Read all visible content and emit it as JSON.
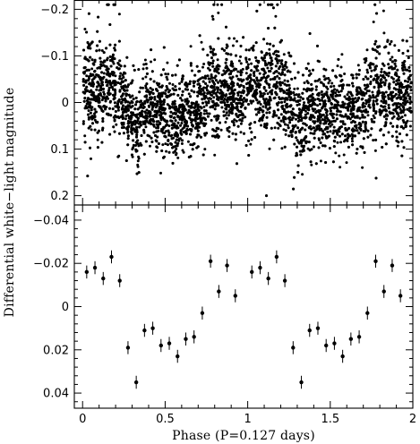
{
  "chart_data": [
    {
      "type": "scatter",
      "panel": "top",
      "title": "",
      "xlabel": "",
      "ylabel": "",
      "xlim": [
        -0.05,
        2.0
      ],
      "ylim": [
        0.22,
        -0.22
      ],
      "y_inverted": true,
      "x_ticks": [
        0,
        0.5,
        1,
        1.5,
        2
      ],
      "y_ticks": [
        -0.2,
        -0.1,
        0,
        0.1,
        0.2
      ],
      "y_tick_labels": [
        "−0.2",
        "−0.1",
        "0",
        "0.1",
        "0.2"
      ],
      "description_values": {
        "n_points_approx": 5000,
        "core_spread": 0.045,
        "envelope_peaks_phase": [
          0.05,
          0.15,
          0.8,
          1.05,
          1.15,
          1.8
        ],
        "outlier_ymin": -0.21,
        "outlier_ymax": 0.2
      }
    },
    {
      "type": "scatter",
      "panel": "bottom",
      "title": "",
      "xlabel": "Phase (P=0.127 days)",
      "ylabel": "Differential white−light magnitude",
      "xlim": [
        -0.05,
        2.0
      ],
      "ylim": [
        0.047,
        -0.047
      ],
      "y_inverted": true,
      "x_ticks": [
        0,
        0.5,
        1,
        1.5,
        2
      ],
      "x_tick_labels": [
        "0",
        "0.5",
        "1",
        "1.5",
        "2"
      ],
      "y_ticks": [
        -0.04,
        -0.02,
        0,
        0.02,
        0.04
      ],
      "y_tick_labels": [
        "−0.04",
        "−0.02",
        "0",
        "0.02",
        "0.04"
      ],
      "error": 0.003,
      "x": [
        0.025,
        0.075,
        0.125,
        0.175,
        0.225,
        0.275,
        0.325,
        0.375,
        0.425,
        0.475,
        0.525,
        0.575,
        0.625,
        0.675,
        0.725,
        0.775,
        0.825,
        0.875,
        0.925,
        1.025,
        1.075,
        1.125,
        1.175,
        1.225,
        1.275,
        1.325,
        1.375,
        1.425,
        1.475,
        1.525,
        1.575,
        1.625,
        1.675,
        1.725,
        1.775,
        1.825,
        1.875,
        1.925
      ],
      "y": [
        -0.016,
        -0.018,
        -0.013,
        -0.023,
        -0.012,
        0.019,
        0.035,
        0.011,
        0.01,
        0.018,
        0.017,
        0.023,
        0.015,
        0.014,
        0.003,
        -0.021,
        -0.007,
        -0.019,
        -0.005,
        -0.016,
        -0.018,
        -0.013,
        -0.023,
        -0.012,
        0.019,
        0.035,
        0.011,
        0.01,
        0.018,
        0.017,
        0.023,
        0.015,
        0.014,
        0.003,
        -0.021,
        -0.007,
        -0.019,
        -0.005
      ]
    }
  ],
  "axes": {
    "ylabel": "Differential white−light magnitude",
    "xlabel": "Phase (P=0.127 days)"
  }
}
